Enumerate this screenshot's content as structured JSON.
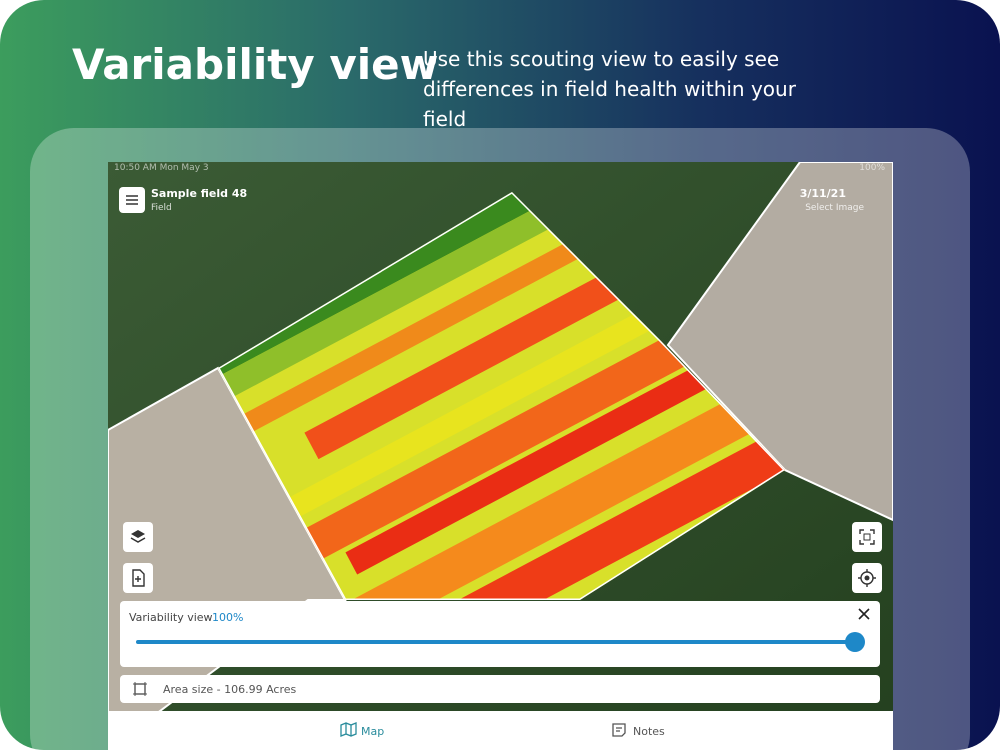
{
  "header": {
    "title": "Variability view",
    "description": "Use this scouting view to easily see differences in field health within your field"
  },
  "status_bar": {
    "time": "10:50 AM  Mon May 3",
    "battery": "100%"
  },
  "top_bar": {
    "field_name": "Sample field 48",
    "field_type": "Field",
    "date": "3/11/21",
    "date_hint": "Select Image"
  },
  "slider_panel": {
    "label": "Variability view",
    "value": "100%"
  },
  "area_panel": {
    "text": "Area size - 106.99 Acres"
  },
  "tabs": [
    "Map",
    "Notes"
  ]
}
